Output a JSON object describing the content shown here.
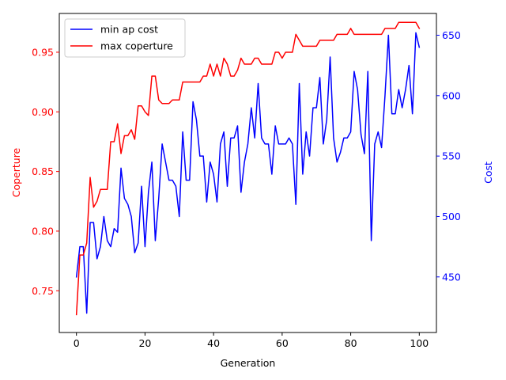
{
  "chart_data": {
    "type": "line",
    "title": "",
    "xlabel": "Generation",
    "xlim": [
      -5,
      105
    ],
    "xticks": [
      0,
      20,
      40,
      60,
      80,
      100
    ],
    "grid": false,
    "legend_position": "top-left",
    "left_axis": {
      "label": "Coperture",
      "color": "#ff0000",
      "ylim": [
        0.715,
        0.9825
      ],
      "ticks": [
        0.75,
        0.8,
        0.85,
        0.9,
        0.95
      ],
      "tick_labels": [
        "0.75",
        "0.80",
        "0.85",
        "0.90",
        "0.95"
      ]
    },
    "right_axis": {
      "label": "Cost",
      "color": "#0000ff",
      "ylim": [
        404,
        668
      ],
      "ticks": [
        450,
        500,
        550,
        600,
        650
      ],
      "tick_labels": [
        "450",
        "500",
        "550",
        "600",
        "650"
      ]
    },
    "series": [
      {
        "name": "min ap cost",
        "axis": "right",
        "color": "#0000ff",
        "x": [
          0,
          1,
          2,
          3,
          4,
          5,
          6,
          7,
          8,
          9,
          10,
          11,
          12,
          13,
          14,
          15,
          16,
          17,
          18,
          19,
          20,
          21,
          22,
          23,
          24,
          25,
          26,
          27,
          28,
          29,
          30,
          31,
          32,
          33,
          34,
          35,
          36,
          37,
          38,
          39,
          40,
          41,
          42,
          43,
          44,
          45,
          46,
          47,
          48,
          49,
          50,
          51,
          52,
          53,
          54,
          55,
          56,
          57,
          58,
          59,
          60,
          61,
          62,
          63,
          64,
          65,
          66,
          67,
          68,
          69,
          70,
          71,
          72,
          73,
          74,
          75,
          76,
          77,
          78,
          79,
          80,
          81,
          82,
          83,
          84,
          85,
          86,
          87,
          88,
          89,
          90,
          91,
          92,
          93,
          94,
          95,
          96,
          97,
          98,
          99,
          100
        ],
        "values": [
          450,
          475,
          475,
          420,
          495,
          495,
          465,
          475,
          500,
          480,
          475,
          490,
          487,
          540,
          515,
          510,
          500,
          470,
          478,
          525,
          475,
          520,
          545,
          480,
          515,
          560,
          545,
          530,
          530,
          525,
          500,
          570,
          530,
          530,
          595,
          580,
          550,
          550,
          512,
          545,
          535,
          512,
          560,
          570,
          525,
          565,
          565,
          575,
          520,
          545,
          560,
          590,
          565,
          610,
          565,
          560,
          560,
          535,
          575,
          560,
          560,
          560,
          565,
          560,
          510,
          610,
          535,
          570,
          550,
          590,
          590,
          615,
          560,
          580,
          632,
          565,
          545,
          553,
          565,
          565,
          570,
          620,
          605,
          568,
          552,
          620,
          480,
          560,
          570,
          557,
          600,
          650,
          585,
          585,
          605,
          590,
          605,
          625,
          585,
          652,
          640
        ]
      },
      {
        "name": "max coperture",
        "axis": "left",
        "color": "#ff0000",
        "x": [
          0,
          1,
          2,
          3,
          4,
          5,
          6,
          7,
          8,
          9,
          10,
          11,
          12,
          13,
          14,
          15,
          16,
          17,
          18,
          19,
          20,
          21,
          22,
          23,
          24,
          25,
          26,
          27,
          28,
          29,
          30,
          31,
          32,
          33,
          34,
          35,
          36,
          37,
          38,
          39,
          40,
          41,
          42,
          43,
          44,
          45,
          46,
          47,
          48,
          49,
          50,
          51,
          52,
          53,
          54,
          55,
          56,
          57,
          58,
          59,
          60,
          61,
          62,
          63,
          64,
          65,
          66,
          67,
          68,
          69,
          70,
          71,
          72,
          73,
          74,
          75,
          76,
          77,
          78,
          79,
          80,
          81,
          82,
          83,
          84,
          85,
          86,
          87,
          88,
          89,
          90,
          91,
          92,
          93,
          94,
          95,
          96,
          97,
          98,
          99,
          100
        ],
        "values": [
          0.73,
          0.78,
          0.78,
          0.79,
          0.845,
          0.82,
          0.825,
          0.835,
          0.835,
          0.835,
          0.875,
          0.875,
          0.89,
          0.865,
          0.88,
          0.88,
          0.885,
          0.877,
          0.905,
          0.905,
          0.9,
          0.897,
          0.93,
          0.93,
          0.91,
          0.907,
          0.907,
          0.907,
          0.91,
          0.91,
          0.91,
          0.925,
          0.925,
          0.925,
          0.925,
          0.925,
          0.925,
          0.93,
          0.93,
          0.94,
          0.93,
          0.94,
          0.93,
          0.945,
          0.94,
          0.93,
          0.93,
          0.935,
          0.945,
          0.94,
          0.94,
          0.94,
          0.945,
          0.945,
          0.94,
          0.94,
          0.94,
          0.94,
          0.95,
          0.95,
          0.945,
          0.95,
          0.95,
          0.95,
          0.965,
          0.96,
          0.955,
          0.955,
          0.955,
          0.955,
          0.955,
          0.96,
          0.96,
          0.96,
          0.96,
          0.96,
          0.965,
          0.965,
          0.965,
          0.965,
          0.97,
          0.965,
          0.965,
          0.965,
          0.965,
          0.965,
          0.965,
          0.965,
          0.965,
          0.965,
          0.97,
          0.97,
          0.97,
          0.97,
          0.975,
          0.975,
          0.975,
          0.975,
          0.975,
          0.975,
          0.97
        ]
      }
    ]
  }
}
